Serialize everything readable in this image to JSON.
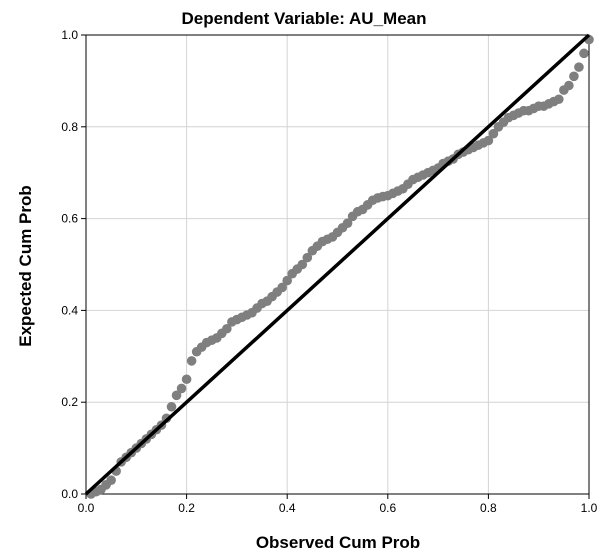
{
  "chart_data": {
    "type": "scatter",
    "title": "Dependent Variable: AU_Mean",
    "xlabel": "Observed Cum Prob",
    "ylabel": "Expected Cum Prob",
    "xlim": [
      0,
      1
    ],
    "ylim": [
      0,
      1
    ],
    "x_ticks": [
      "0.0",
      "0.2",
      "0.4",
      "0.6",
      "0.8",
      "1.0"
    ],
    "y_ticks": [
      "0.0",
      "0.2",
      "0.4",
      "0.6",
      "0.8",
      "1.0"
    ],
    "grid": true,
    "reference_line": {
      "from": [
        0,
        0
      ],
      "to": [
        1,
        1
      ],
      "color": "#000000"
    },
    "marker_color": "#7f7f7f",
    "points": [
      [
        0.01,
        0.0
      ],
      [
        0.02,
        0.005
      ],
      [
        0.03,
        0.01
      ],
      [
        0.04,
        0.02
      ],
      [
        0.05,
        0.03
      ],
      [
        0.06,
        0.05
      ],
      [
        0.07,
        0.07
      ],
      [
        0.08,
        0.08
      ],
      [
        0.09,
        0.09
      ],
      [
        0.1,
        0.1
      ],
      [
        0.11,
        0.11
      ],
      [
        0.12,
        0.12
      ],
      [
        0.13,
        0.13
      ],
      [
        0.14,
        0.14
      ],
      [
        0.15,
        0.15
      ],
      [
        0.16,
        0.165
      ],
      [
        0.17,
        0.19
      ],
      [
        0.18,
        0.215
      ],
      [
        0.19,
        0.23
      ],
      [
        0.2,
        0.25
      ],
      [
        0.21,
        0.29
      ],
      [
        0.22,
        0.31
      ],
      [
        0.23,
        0.32
      ],
      [
        0.24,
        0.33
      ],
      [
        0.25,
        0.335
      ],
      [
        0.26,
        0.34
      ],
      [
        0.27,
        0.35
      ],
      [
        0.28,
        0.36
      ],
      [
        0.29,
        0.375
      ],
      [
        0.3,
        0.38
      ],
      [
        0.31,
        0.385
      ],
      [
        0.32,
        0.39
      ],
      [
        0.33,
        0.395
      ],
      [
        0.34,
        0.405
      ],
      [
        0.35,
        0.415
      ],
      [
        0.36,
        0.42
      ],
      [
        0.37,
        0.43
      ],
      [
        0.38,
        0.44
      ],
      [
        0.39,
        0.45
      ],
      [
        0.4,
        0.465
      ],
      [
        0.41,
        0.48
      ],
      [
        0.42,
        0.49
      ],
      [
        0.43,
        0.5
      ],
      [
        0.44,
        0.515
      ],
      [
        0.45,
        0.53
      ],
      [
        0.46,
        0.54
      ],
      [
        0.47,
        0.55
      ],
      [
        0.48,
        0.555
      ],
      [
        0.49,
        0.56
      ],
      [
        0.5,
        0.57
      ],
      [
        0.51,
        0.58
      ],
      [
        0.52,
        0.59
      ],
      [
        0.53,
        0.605
      ],
      [
        0.54,
        0.615
      ],
      [
        0.55,
        0.62
      ],
      [
        0.56,
        0.63
      ],
      [
        0.57,
        0.64
      ],
      [
        0.58,
        0.645
      ],
      [
        0.59,
        0.648
      ],
      [
        0.6,
        0.65
      ],
      [
        0.61,
        0.655
      ],
      [
        0.62,
        0.66
      ],
      [
        0.63,
        0.665
      ],
      [
        0.64,
        0.675
      ],
      [
        0.65,
        0.685
      ],
      [
        0.66,
        0.69
      ],
      [
        0.67,
        0.695
      ],
      [
        0.68,
        0.7
      ],
      [
        0.69,
        0.705
      ],
      [
        0.7,
        0.71
      ],
      [
        0.71,
        0.72
      ],
      [
        0.72,
        0.725
      ],
      [
        0.73,
        0.73
      ],
      [
        0.74,
        0.74
      ],
      [
        0.75,
        0.745
      ],
      [
        0.76,
        0.75
      ],
      [
        0.77,
        0.755
      ],
      [
        0.78,
        0.76
      ],
      [
        0.79,
        0.765
      ],
      [
        0.8,
        0.77
      ],
      [
        0.81,
        0.785
      ],
      [
        0.82,
        0.8
      ],
      [
        0.83,
        0.81
      ],
      [
        0.84,
        0.82
      ],
      [
        0.85,
        0.825
      ],
      [
        0.86,
        0.83
      ],
      [
        0.87,
        0.835
      ],
      [
        0.88,
        0.835
      ],
      [
        0.89,
        0.84
      ],
      [
        0.9,
        0.845
      ],
      [
        0.91,
        0.845
      ],
      [
        0.92,
        0.85
      ],
      [
        0.93,
        0.855
      ],
      [
        0.94,
        0.86
      ],
      [
        0.95,
        0.88
      ],
      [
        0.96,
        0.89
      ],
      [
        0.97,
        0.91
      ],
      [
        0.98,
        0.93
      ],
      [
        0.99,
        0.96
      ],
      [
        1.0,
        0.99
      ]
    ]
  }
}
